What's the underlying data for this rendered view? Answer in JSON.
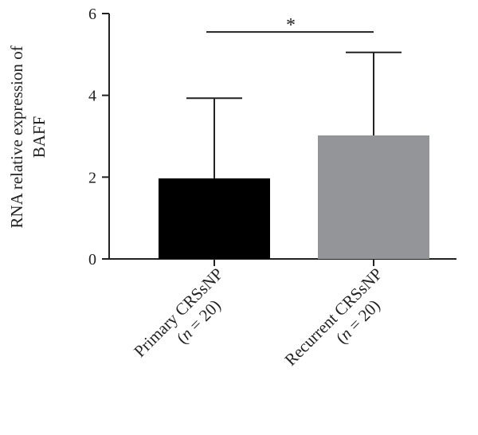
{
  "chart_data": {
    "type": "bar",
    "ylabel_lines": [
      "RNA relative expression of",
      "BAFF"
    ],
    "ylim": [
      0,
      6
    ],
    "yticks": [
      {
        "value": 0,
        "label": "0"
      },
      {
        "value": 2,
        "label": "2"
      },
      {
        "value": 4,
        "label": "4"
      },
      {
        "value": 6,
        "label": "6"
      }
    ],
    "categories": [
      {
        "line1": "Primary CRSsNP",
        "n_prefix": "(",
        "n_symbol": "n",
        "n_rest": " = 20)"
      },
      {
        "line1": "Recurrent CRSsNP",
        "n_prefix": "(",
        "n_symbol": "n",
        "n_rest": " = 20)"
      }
    ],
    "values": [
      1.97,
      3.02
    ],
    "error_upper": [
      3.93,
      5.05
    ],
    "colors": [
      "#000000",
      "#939598"
    ],
    "significance": {
      "from": 0,
      "to": 1,
      "label": "*",
      "y": 5.55
    }
  }
}
